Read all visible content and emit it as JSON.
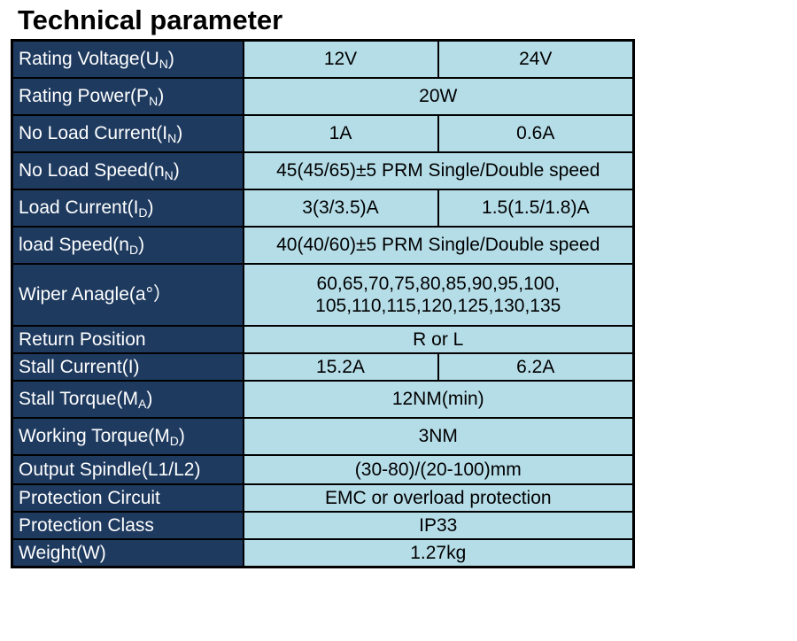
{
  "title": "Technical parameter",
  "rows": [
    {
      "label": "Rating Voltage(U",
      "sub": "N",
      "suffix": ")",
      "values": [
        "12V",
        "24V"
      ]
    },
    {
      "label": "Rating Power(P",
      "sub": "N",
      "suffix": ")",
      "values": [
        "20W"
      ]
    },
    {
      "label": "No Load Current(I",
      "sub": "N",
      "suffix": ")",
      "values": [
        "1A",
        "0.6A"
      ]
    },
    {
      "label": "No Load Speed(n",
      "sub": "N",
      "suffix": ")",
      "values": [
        "45(45/65)±5 PRM Single/Double speed"
      ]
    },
    {
      "label": "Load Current(I",
      "sub": "D",
      "suffix": ")",
      "values": [
        "3(3/3.5)A",
        "1.5(1.5/1.8)A"
      ]
    },
    {
      "label": "load Speed(n",
      "sub": "D",
      "suffix": ")",
      "values": [
        "40(40/60)±5 PRM Single/Double speed"
      ]
    },
    {
      "label": "Wiper Anagle(a°）",
      "sub": "",
      "suffix": "",
      "values": [
        "60,65,70,75,80,85,90,95,100,",
        "105,110,115,120,125,130,135"
      ]
    },
    {
      "label": "Return Position",
      "sub": "",
      "suffix": "",
      "values": [
        "R or L"
      ]
    },
    {
      "label": "Stall Current(I)",
      "sub": "",
      "suffix": "",
      "values": [
        "15.2A",
        "6.2A"
      ]
    },
    {
      "label": "Stall Torque(M",
      "sub": "A",
      "suffix": ")",
      "values": [
        "12NM(min)"
      ]
    },
    {
      "label": "Working Torque(M",
      "sub": "D",
      "suffix": ")",
      "values": [
        "3NM"
      ]
    },
    {
      "label": "Output Spindle(L1/L2)",
      "sub": "",
      "suffix": "",
      "values": [
        "(30-80)/(20-100)mm"
      ]
    },
    {
      "label": "Protection Circuit",
      "sub": "",
      "suffix": "",
      "values": [
        "EMC or overload protection"
      ]
    },
    {
      "label": "Protection Class",
      "sub": "",
      "suffix": "",
      "values": [
        "IP33"
      ]
    },
    {
      "label": "Weight(W)",
      "sub": "",
      "suffix": "",
      "values": [
        "1.27kg"
      ]
    }
  ],
  "colors": {
    "label_bg": "#1e3a5f",
    "value_bg": "#b5dde8",
    "border": "#000000"
  }
}
